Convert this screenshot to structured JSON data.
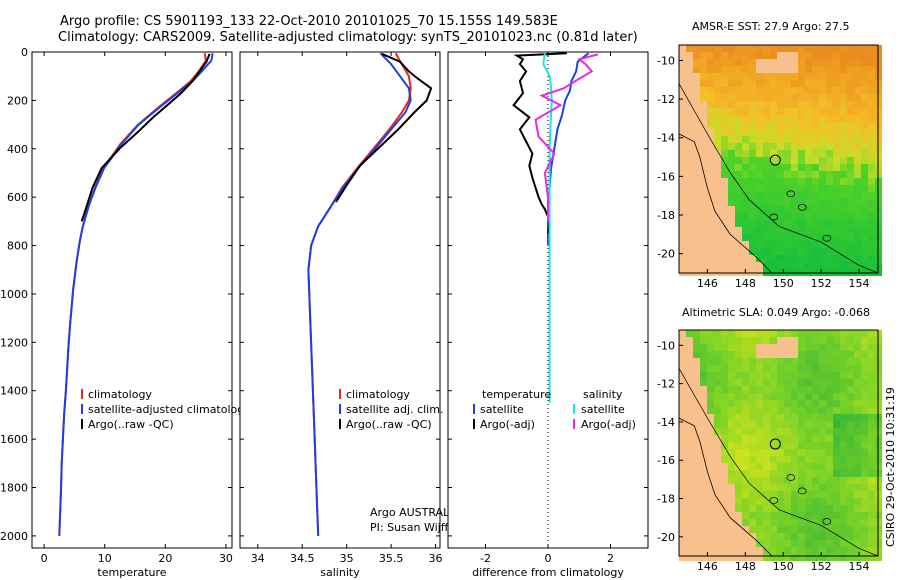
{
  "header": {
    "line1": "Argo profile: CS 5901193_133 22-Oct-2010 20101025_70 15.155S 149.583E",
    "line2": "Climatology: CARS2009. Satellite-adjusted climatology: synTS_20101023.nc (0.81d later)"
  },
  "colors": {
    "climatology": "#e8281e",
    "satellite": "#1f3fe6",
    "argo": "#000000",
    "sal_satellite": "#18e6e6",
    "sal_argo": "#e62ae6",
    "land": "#f7c08c"
  },
  "depth_axis": {
    "ylim": [
      0,
      2050
    ],
    "ticks": [
      "0",
      "200",
      "400",
      "600",
      "800",
      "1000",
      "1200",
      "1400",
      "1600",
      "1800",
      "2000"
    ]
  },
  "chart_data": [
    {
      "id": "temperature",
      "type": "line",
      "xlabel": "temperature",
      "xlim": [
        -2,
        31
      ],
      "xticks": [
        "0",
        "10",
        "20",
        "30"
      ],
      "xtick_values": [
        0,
        10,
        20,
        30
      ],
      "legend": [
        "climatology",
        "satellite-adjusted climatology",
        "Argo(..raw -QC)"
      ],
      "series": [
        {
          "name": "climatology",
          "color": "#e8281e",
          "x": [
            26.5,
            26.7,
            25.5,
            24.2,
            21.8,
            18.8,
            15.5,
            12.6,
            9.8,
            8.4,
            7.3,
            6.4,
            5.9,
            5.4,
            4.8,
            4.3,
            4.0,
            3.6,
            3.3,
            2.9,
            2.8,
            2.5
          ],
          "y": [
            5,
            35,
            80,
            120,
            170,
            230,
            300,
            380,
            480,
            560,
            640,
            720,
            780,
            860,
            980,
            1120,
            1220,
            1400,
            1500,
            1700,
            1800,
            2000
          ]
        },
        {
          "name": "satellite-adjusted climatology",
          "color": "#1f3fe6",
          "x": [
            27.8,
            27.6,
            26.0,
            24.5,
            22.0,
            19.0,
            15.6,
            12.8,
            9.9,
            8.5,
            7.3,
            6.4,
            5.9,
            5.4,
            4.8,
            4.3,
            4.0,
            3.6,
            3.3,
            2.9,
            2.8,
            2.5
          ],
          "y": [
            5,
            35,
            80,
            120,
            170,
            230,
            300,
            380,
            480,
            560,
            640,
            720,
            780,
            860,
            980,
            1120,
            1220,
            1400,
            1500,
            1700,
            1800,
            2000
          ]
        },
        {
          "name": "Argo(..raw -QC)",
          "color": "#000000",
          "x": [
            27.3,
            26.8,
            25.8,
            24.5,
            22.6,
            20.3,
            18.0,
            15.5,
            12.4,
            9.5,
            8.0,
            7.0,
            6.2
          ],
          "y": [
            8,
            40,
            75,
            120,
            170,
            220,
            270,
            330,
            400,
            480,
            560,
            640,
            700
          ]
        }
      ]
    },
    {
      "id": "salinity",
      "type": "line",
      "xlabel": "salinity",
      "xlim": [
        33.8,
        36.05
      ],
      "xticks": [
        "34",
        "34.5",
        "35",
        "35.5",
        "36"
      ],
      "xtick_values": [
        34,
        34.5,
        35,
        35.5,
        36
      ],
      "legend": [
        "climatology",
        "satellite adj. clim.",
        "Argo(..raw -QC)"
      ],
      "annotation": [
        "Argo AUSTRALIA",
        "PI: Susan Wijffels"
      ],
      "series": [
        {
          "name": "climatology",
          "color": "#e8281e",
          "x": [
            35.55,
            35.62,
            35.7,
            35.72,
            35.7,
            35.62,
            35.48,
            35.3,
            35.12,
            34.95,
            34.82,
            34.68,
            34.6,
            34.57,
            34.58,
            34.6,
            34.62,
            34.64,
            34.66,
            34.68
          ],
          "y": [
            5,
            50,
            100,
            150,
            200,
            250,
            320,
            400,
            480,
            560,
            640,
            720,
            800,
            900,
            1000,
            1200,
            1400,
            1600,
            1800,
            2000
          ]
        },
        {
          "name": "satellite adj. clim.",
          "color": "#1f3fe6",
          "x": [
            35.38,
            35.5,
            35.6,
            35.7,
            35.72,
            35.66,
            35.5,
            35.32,
            35.13,
            34.96,
            34.82,
            34.68,
            34.6,
            34.57,
            34.58,
            34.6,
            34.62,
            34.64,
            34.66,
            34.68
          ],
          "y": [
            5,
            50,
            100,
            150,
            200,
            250,
            320,
            400,
            480,
            560,
            640,
            720,
            800,
            900,
            1000,
            1200,
            1400,
            1600,
            1800,
            2000
          ]
        },
        {
          "name": "Argo(..raw -QC)",
          "color": "#000000",
          "x": [
            35.4,
            35.6,
            35.7,
            35.8,
            35.95,
            35.9,
            35.76,
            35.58,
            35.35,
            35.15,
            35.0,
            34.88
          ],
          "y": [
            8,
            40,
            80,
            110,
            150,
            200,
            250,
            320,
            400,
            470,
            550,
            620
          ]
        }
      ]
    },
    {
      "id": "difference",
      "type": "line",
      "xlabel": "difference from climatology",
      "xlim": [
        -3.2,
        3.2
      ],
      "xticks": [
        "-2",
        "0",
        "2"
      ],
      "xtick_values": [
        -2,
        0,
        2
      ],
      "legend_temperature": [
        "temperature",
        "satellite",
        "Argo(-adj)"
      ],
      "legend_salinity": [
        "salinity",
        "satellite",
        "Argo(-adj)"
      ],
      "series": [
        {
          "name": "satellite",
          "group": "temperature",
          "color": "#1f3fe6",
          "x": [
            1.3,
            0.95,
            0.9,
            0.75,
            0.7,
            0.55,
            0.45,
            0.3,
            0.2,
            0.1,
            0.05,
            0.0,
            0.0
          ],
          "y": [
            5,
            40,
            80,
            120,
            160,
            200,
            260,
            320,
            400,
            480,
            560,
            700,
            800
          ]
        },
        {
          "name": "Argo(-adj)",
          "group": "temperature",
          "color": "#000000",
          "x": [
            0.6,
            -1.0,
            -0.8,
            -0.9,
            -0.7,
            -0.9,
            -0.8,
            -1.1,
            -0.6,
            -0.9,
            -0.7,
            -0.5,
            -0.6,
            -0.5,
            -0.4,
            -0.3,
            -0.2,
            -0.1,
            0.0,
            0.05,
            0.0
          ],
          "y": [
            5,
            15,
            30,
            50,
            80,
            120,
            170,
            220,
            270,
            320,
            370,
            420,
            470,
            520,
            560,
            600,
            630,
            650,
            680,
            700,
            750
          ]
        },
        {
          "name": "satellite",
          "group": "salinity",
          "color": "#18e6e6",
          "x": [
            -0.1,
            -0.15,
            0.05,
            0.1,
            0.12,
            0.08,
            0.05,
            0.05,
            0.05,
            0.05,
            0.05,
            0.05,
            0.05
          ],
          "y": [
            5,
            50,
            100,
            150,
            200,
            300,
            400,
            500,
            600,
            800,
            1000,
            1300,
            1450
          ]
        },
        {
          "name": "Argo(-adj)",
          "group": "salinity",
          "color": "#e62ae6",
          "x": [
            1.6,
            1.0,
            1.2,
            1.4,
            1.0,
            0.5,
            -0.2,
            0.4,
            -0.4,
            -0.3,
            0.2,
            -0.1,
            0.0,
            0.0
          ],
          "y": [
            10,
            30,
            50,
            80,
            110,
            150,
            180,
            220,
            280,
            350,
            420,
            500,
            600,
            700
          ]
        }
      ]
    },
    {
      "id": "sst_map",
      "type": "heatmap",
      "title": "AMSR-E SST: 27.9 Argo: 27.5",
      "xlim": [
        144.5,
        155
      ],
      "ylim": [
        -21,
        -9.2
      ],
      "xticks": [
        "146",
        "148",
        "150",
        "152",
        "154"
      ],
      "yticks": [
        "-10",
        "-12",
        "-14",
        "-16",
        "-18",
        "-20"
      ],
      "float_position": {
        "lon": 149.583,
        "lat": -15.155
      }
    },
    {
      "id": "sla_map",
      "type": "heatmap",
      "title": "Altimetric SLA: 0.049 Argo: -0.068",
      "xlim": [
        144.5,
        155
      ],
      "ylim": [
        -21,
        -9.2
      ],
      "xticks": [
        "146",
        "148",
        "150",
        "152",
        "154"
      ],
      "yticks": [
        "-10",
        "-12",
        "-14",
        "-16",
        "-18",
        "-20"
      ],
      "float_position": {
        "lon": 149.583,
        "lat": -15.155
      }
    }
  ],
  "stamp": "CSIRO 29-Oct-2010 10:31:19"
}
